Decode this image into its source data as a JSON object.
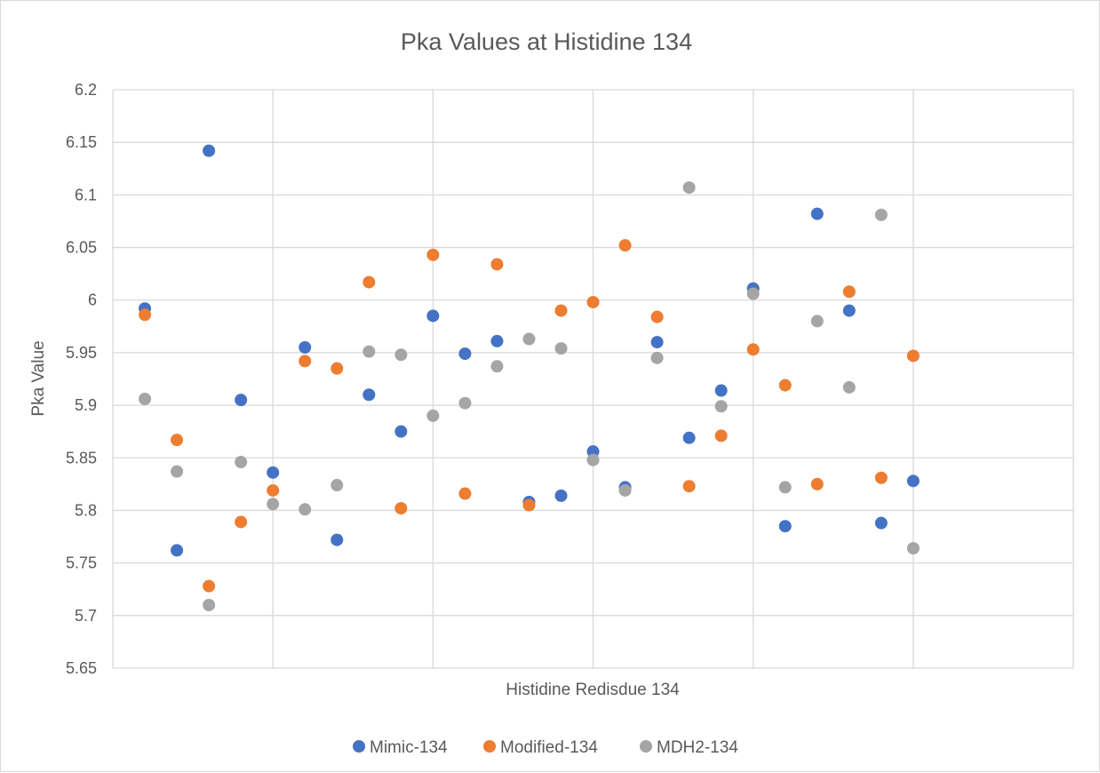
{
  "chart_data": {
    "type": "scatter",
    "title": "Pka Values at Histidine 134",
    "xlabel": "Histidine Redisdue 134",
    "ylabel": "Pka Value",
    "xlim": [
      0,
      30
    ],
    "ylim": [
      5.65,
      6.2
    ],
    "y_ticks": [
      "6.2",
      "6.15",
      "6.1",
      "6.05",
      "6",
      "5.95",
      "5.9",
      "5.85",
      "5.8",
      "5.75",
      "5.7",
      "5.65"
    ],
    "x_tick_labels_shown": false,
    "grid": true,
    "legend_position": "bottom",
    "series": [
      {
        "name": "Mimic-134",
        "color": "#4472C4",
        "x": [
          1,
          2,
          3,
          4,
          5,
          6,
          7,
          8,
          9,
          10,
          11,
          12,
          13,
          14,
          15,
          16,
          17,
          18,
          19,
          20,
          21,
          22,
          23,
          24,
          25
        ],
        "y": [
          5.992,
          5.762,
          6.142,
          5.905,
          5.836,
          5.955,
          5.772,
          5.91,
          5.875,
          5.985,
          5.949,
          5.961,
          5.808,
          5.814,
          5.856,
          5.822,
          5.96,
          5.869,
          5.914,
          6.011,
          5.785,
          6.082,
          5.99,
          5.788,
          5.828
        ]
      },
      {
        "name": "Modified-134",
        "color": "#ED7D31",
        "x": [
          1,
          2,
          3,
          4,
          5,
          6,
          7,
          8,
          9,
          10,
          11,
          12,
          13,
          14,
          15,
          16,
          17,
          18,
          19,
          20,
          21,
          22,
          23,
          24,
          25
        ],
        "y": [
          5.986,
          5.867,
          5.728,
          5.789,
          5.819,
          5.942,
          5.935,
          6.017,
          5.802,
          6.043,
          5.816,
          6.034,
          5.805,
          5.99,
          5.998,
          6.052,
          5.984,
          5.823,
          5.871,
          5.953,
          5.919,
          5.825,
          6.008,
          5.831,
          5.947
        ]
      },
      {
        "name": "MDH2-134",
        "color": "#A5A5A5",
        "x": [
          1,
          2,
          3,
          4,
          5,
          6,
          7,
          8,
          9,
          10,
          11,
          12,
          13,
          14,
          15,
          16,
          17,
          18,
          19,
          20,
          21,
          22,
          23,
          24,
          25
        ],
        "y": [
          5.906,
          5.837,
          5.71,
          5.846,
          5.806,
          5.801,
          5.824,
          5.951,
          5.948,
          5.89,
          5.902,
          5.937,
          5.963,
          5.954,
          5.848,
          5.819,
          5.945,
          6.107,
          5.899,
          6.006,
          5.822,
          5.98,
          5.917,
          6.081,
          5.764
        ]
      }
    ]
  }
}
